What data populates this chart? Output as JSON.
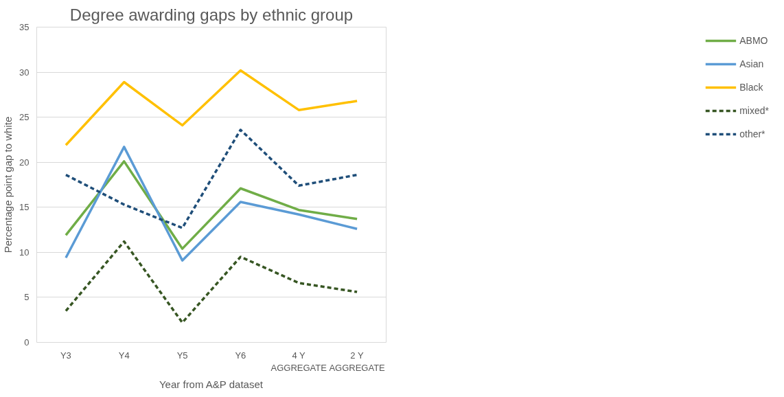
{
  "chart_data": {
    "type": "line",
    "title": "Degree awarding gaps by ethnic group",
    "xlabel": "Year from A&P dataset",
    "ylabel": "Percentage point gap to white",
    "categories": [
      "Y3",
      "Y4",
      "Y5",
      "Y6",
      "4 Y\nAGGREGATE",
      "2 Y\nAGGREGATE"
    ],
    "series": [
      {
        "name": "ABMO",
        "color": "#70ad47",
        "values": [
          11.9,
          20.1,
          10.4,
          17.1,
          14.7,
          13.7
        ]
      },
      {
        "name": "Asian",
        "color": "#5b9bd5",
        "values": [
          9.4,
          21.7,
          9.1,
          15.6,
          14.2,
          12.6
        ]
      },
      {
        "name": "Black",
        "color": "#ffc000",
        "values": [
          21.9,
          28.9,
          24.1,
          30.2,
          25.8,
          26.8
        ]
      },
      {
        "name": "mixed*",
        "color": "#375623",
        "values": [
          3.5,
          11.2,
          2.2,
          9.5,
          6.6,
          5.6
        ],
        "line_style": "dashed"
      },
      {
        "name": "other*",
        "color": "#1f4e79",
        "values": [
          18.6,
          15.3,
          12.7,
          23.6,
          17.4,
          18.6
        ],
        "line_style": "dashed"
      }
    ],
    "ylim": [
      0,
      35
    ],
    "yticks": [
      0,
      5,
      10,
      15,
      20,
      25,
      30,
      35
    ],
    "grid": "y",
    "legend": "right",
    "marker": "none",
    "line_style": "solid"
  }
}
